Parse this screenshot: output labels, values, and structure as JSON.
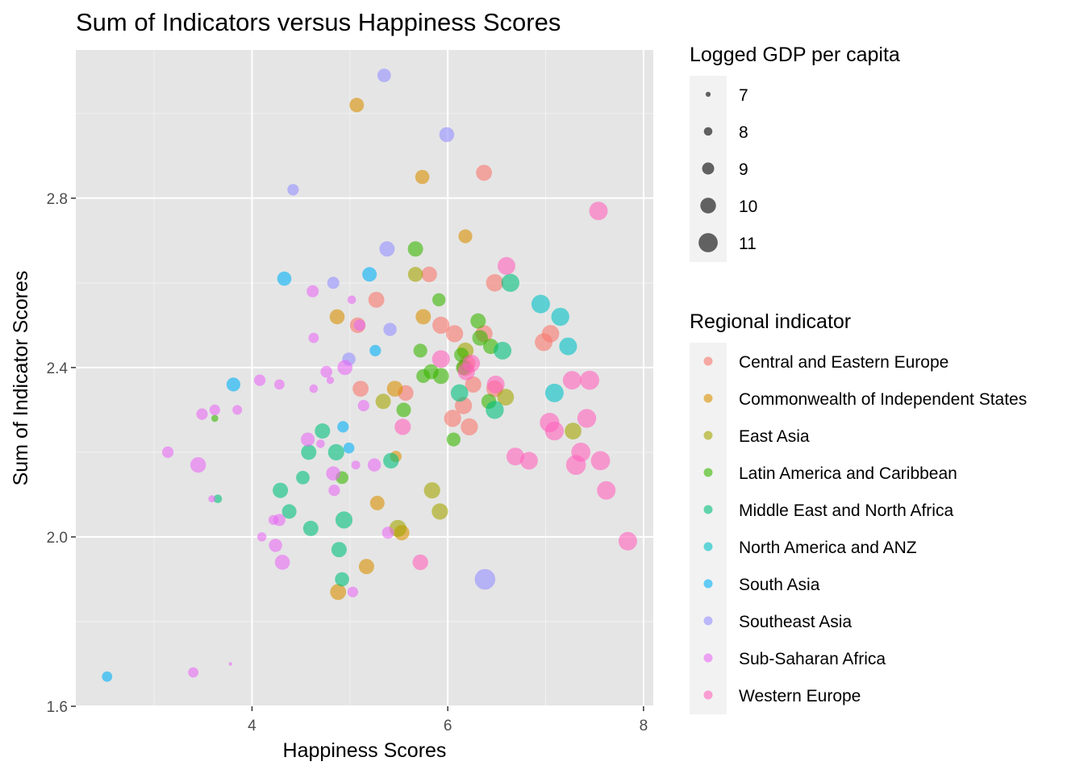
{
  "chart_data": {
    "type": "scatter",
    "title": "Sum of Indicators versus Happiness Scores",
    "xlabel": "Happiness Scores",
    "ylabel": "Sum of Indicator Scores",
    "xlim": [
      2.2,
      8.1
    ],
    "ylim": [
      1.6,
      3.15
    ],
    "x_ticks": [
      4,
      6,
      8
    ],
    "y_ticks": [
      1.6,
      2.0,
      2.4,
      2.8
    ],
    "x_tick_labels": [
      "4",
      "6",
      "8"
    ],
    "y_tick_labels": [
      "1.6",
      "2.0",
      "2.4",
      "2.8"
    ],
    "grid": true,
    "legend_placement": "right",
    "size_legend": {
      "title": "Logged GDP per capita",
      "values": [
        7,
        8,
        9,
        10,
        11
      ],
      "labels": [
        "7",
        "8",
        "9",
        "10",
        "11"
      ]
    },
    "color_legend": {
      "title": "Regional indicator",
      "items": [
        {
          "name": "Central and Eastern Europe",
          "color": "#F8766D"
        },
        {
          "name": "Commonwealth of Independent States",
          "color": "#D89000"
        },
        {
          "name": "East Asia",
          "color": "#A3A500"
        },
        {
          "name": "Latin America and Caribbean",
          "color": "#39B600"
        },
        {
          "name": "Middle East and North Africa",
          "color": "#00BF7D"
        },
        {
          "name": "North America and ANZ",
          "color": "#00BFC4"
        },
        {
          "name": "South Asia",
          "color": "#00B0F6"
        },
        {
          "name": "Southeast Asia",
          "color": "#9590FF"
        },
        {
          "name": "Sub-Saharan Africa",
          "color": "#E76BF3"
        },
        {
          "name": "Western Europe",
          "color": "#FF62BC"
        }
      ]
    },
    "series": [
      {
        "name": "Central and Eastern Europe",
        "points": [
          [
            6.37,
            2.86,
            10.1
          ],
          [
            5.81,
            2.62,
            10.0
          ],
          [
            5.27,
            2.56,
            10.1
          ],
          [
            5.08,
            2.5,
            10.0
          ],
          [
            5.11,
            2.35,
            10.1
          ],
          [
            5.57,
            2.34,
            10.0
          ],
          [
            5.93,
            2.5,
            10.4
          ],
          [
            6.07,
            2.48,
            10.4
          ],
          [
            6.37,
            2.48,
            10.4
          ],
          [
            6.18,
            2.4,
            10.3
          ],
          [
            6.2,
            2.41,
            10.2
          ],
          [
            6.26,
            2.36,
            10.2
          ],
          [
            6.05,
            2.28,
            10.4
          ],
          [
            6.22,
            2.26,
            10.4
          ],
          [
            6.16,
            2.31,
            10.4
          ],
          [
            6.48,
            2.35,
            10.3
          ],
          [
            6.48,
            2.6,
            10.5
          ],
          [
            6.98,
            2.46,
            10.6
          ],
          [
            7.05,
            2.48,
            10.5
          ]
        ]
      },
      {
        "name": "Commonwealth of Independent States",
        "points": [
          [
            5.07,
            3.02,
            9.7
          ],
          [
            5.74,
            2.85,
            9.6
          ],
          [
            6.18,
            2.71,
            9.5
          ],
          [
            4.87,
            2.52,
            9.8
          ],
          [
            5.75,
            2.52,
            9.9
          ],
          [
            5.46,
            2.35,
            10.1
          ],
          [
            5.47,
            2.19,
            8.8
          ],
          [
            5.28,
            2.08,
            9.7
          ],
          [
            5.53,
            2.01,
            9.9
          ],
          [
            5.17,
            1.93,
            9.9
          ],
          [
            4.88,
            1.87,
            10.1
          ]
        ]
      },
      {
        "name": "East Asia",
        "points": [
          [
            5.67,
            2.62,
            9.8
          ],
          [
            5.34,
            2.32,
            9.9
          ],
          [
            5.84,
            2.11,
            10.2
          ],
          [
            5.92,
            2.06,
            10.2
          ],
          [
            5.49,
            2.02,
            10.4
          ],
          [
            6.18,
            2.44,
            10.2
          ],
          [
            6.59,
            2.33,
            10.3
          ],
          [
            7.28,
            2.25,
            10.3
          ]
        ]
      },
      {
        "name": "Latin America and Caribbean",
        "points": [
          [
            5.67,
            2.68,
            9.9
          ],
          [
            5.91,
            2.56,
            9.3
          ],
          [
            5.72,
            2.44,
            9.5
          ],
          [
            5.75,
            2.38,
            9.5
          ],
          [
            5.83,
            2.39,
            9.8
          ],
          [
            5.93,
            2.38,
            10.1
          ],
          [
            6.16,
            2.4,
            9.8
          ],
          [
            6.14,
            2.43,
            9.7
          ],
          [
            6.31,
            2.51,
            9.9
          ],
          [
            6.33,
            2.47,
            10.0
          ],
          [
            6.44,
            2.45,
            9.9
          ],
          [
            6.42,
            2.32,
            9.8
          ],
          [
            6.06,
            2.23,
            9.5
          ],
          [
            5.55,
            2.3,
            9.7
          ],
          [
            4.92,
            2.14,
            9.2
          ],
          [
            3.62,
            2.28,
            7.6
          ]
        ]
      },
      {
        "name": "Middle East and North Africa",
        "points": [
          [
            4.72,
            2.25,
            9.9
          ],
          [
            4.58,
            2.2,
            9.9
          ],
          [
            4.86,
            2.2,
            10.2
          ],
          [
            4.52,
            2.14,
            9.4
          ],
          [
            4.29,
            2.11,
            9.9
          ],
          [
            4.38,
            2.06,
            9.7
          ],
          [
            4.6,
            2.02,
            9.9
          ],
          [
            4.94,
            2.04,
            10.4
          ],
          [
            4.89,
            1.97,
            9.9
          ],
          [
            4.92,
            1.9,
            9.6
          ],
          [
            5.42,
            2.18,
            10.0
          ],
          [
            6.12,
            2.34,
            10.5
          ],
          [
            6.48,
            2.3,
            10.7
          ],
          [
            6.56,
            2.44,
            10.6
          ],
          [
            6.64,
            2.6,
            10.7
          ],
          [
            3.65,
            2.09,
            8.0
          ]
        ]
      },
      {
        "name": "North America and ANZ",
        "points": [
          [
            6.95,
            2.55,
            10.8
          ],
          [
            7.15,
            2.52,
            10.7
          ],
          [
            7.23,
            2.45,
            10.6
          ],
          [
            7.09,
            2.34,
            10.8
          ]
        ]
      },
      {
        "name": "South Asia",
        "points": [
          [
            4.33,
            2.61,
            9.6
          ],
          [
            5.2,
            2.62,
            9.7
          ],
          [
            5.26,
            2.44,
            8.8
          ],
          [
            4.93,
            2.26,
            8.8
          ],
          [
            4.99,
            2.21,
            8.7
          ],
          [
            3.81,
            2.36,
            9.5
          ],
          [
            2.52,
            1.67,
            8.5
          ]
        ]
      },
      {
        "name": "Southeast Asia",
        "points": [
          [
            5.35,
            3.09,
            9.4
          ],
          [
            5.99,
            2.95,
            9.8
          ],
          [
            4.42,
            2.82,
            8.8
          ],
          [
            5.38,
            2.68,
            9.9
          ],
          [
            4.83,
            2.6,
            9.0
          ],
          [
            5.41,
            2.49,
            9.3
          ],
          [
            4.99,
            2.42,
            9.3
          ],
          [
            6.38,
            1.9,
            11.4
          ]
        ]
      },
      {
        "name": "Sub-Saharan Africa",
        "points": [
          [
            4.62,
            2.58,
            9.0
          ],
          [
            5.02,
            2.56,
            8.0
          ],
          [
            4.63,
            2.47,
            8.5
          ],
          [
            5.1,
            2.5,
            8.8
          ],
          [
            4.76,
            2.39,
            8.9
          ],
          [
            4.95,
            2.4,
            9.8
          ],
          [
            4.8,
            2.37,
            7.7
          ],
          [
            4.08,
            2.37,
            8.8
          ],
          [
            4.28,
            2.36,
            8.5
          ],
          [
            4.63,
            2.35,
            8.0
          ],
          [
            5.14,
            2.31,
            8.8
          ],
          [
            3.49,
            2.29,
            8.8
          ],
          [
            3.62,
            2.3,
            8.6
          ],
          [
            3.85,
            2.3,
            8.3
          ],
          [
            3.14,
            2.2,
            8.8
          ],
          [
            3.45,
            2.17,
            10.0
          ],
          [
            4.57,
            2.23,
            9.5
          ],
          [
            4.7,
            2.22,
            8.0
          ],
          [
            5.06,
            2.17,
            8.1
          ],
          [
            5.25,
            2.17,
            9.3
          ],
          [
            4.83,
            2.15,
            9.6
          ],
          [
            4.84,
            2.11,
            8.8
          ],
          [
            3.59,
            2.09,
            7.6
          ],
          [
            4.28,
            2.04,
            9.0
          ],
          [
            4.22,
            2.04,
            8.4
          ],
          [
            4.24,
            1.98,
            9.3
          ],
          [
            4.1,
            2.0,
            8.2
          ],
          [
            5.39,
            2.01,
            9.0
          ],
          [
            4.31,
            1.94,
            9.8
          ],
          [
            5.03,
            1.87,
            8.6
          ],
          [
            3.4,
            1.68,
            8.5
          ],
          [
            3.78,
            1.7,
            6.6
          ]
        ]
      },
      {
        "name": "Western Europe",
        "points": [
          [
            6.6,
            2.64,
            10.6
          ],
          [
            7.54,
            2.77,
            10.8
          ],
          [
            7.04,
            2.27,
            11.1
          ],
          [
            7.09,
            2.25,
            10.9
          ],
          [
            7.31,
            2.17,
            11.2
          ],
          [
            7.36,
            2.2,
            11.0
          ],
          [
            7.42,
            2.28,
            10.9
          ],
          [
            7.56,
            2.18,
            11.0
          ],
          [
            7.62,
            2.11,
            10.8
          ],
          [
            7.84,
            1.99,
            10.8
          ],
          [
            7.27,
            2.37,
            10.8
          ],
          [
            7.45,
            2.37,
            11.0
          ],
          [
            6.69,
            2.19,
            10.6
          ],
          [
            6.83,
            2.18,
            10.6
          ],
          [
            6.19,
            2.39,
            10.4
          ],
          [
            6.49,
            2.36,
            10.6
          ],
          [
            5.93,
            2.42,
            10.6
          ],
          [
            5.54,
            2.26,
            10.2
          ],
          [
            5.72,
            1.94,
            10.0
          ],
          [
            6.24,
            2.41,
            10.5
          ]
        ]
      }
    ]
  }
}
